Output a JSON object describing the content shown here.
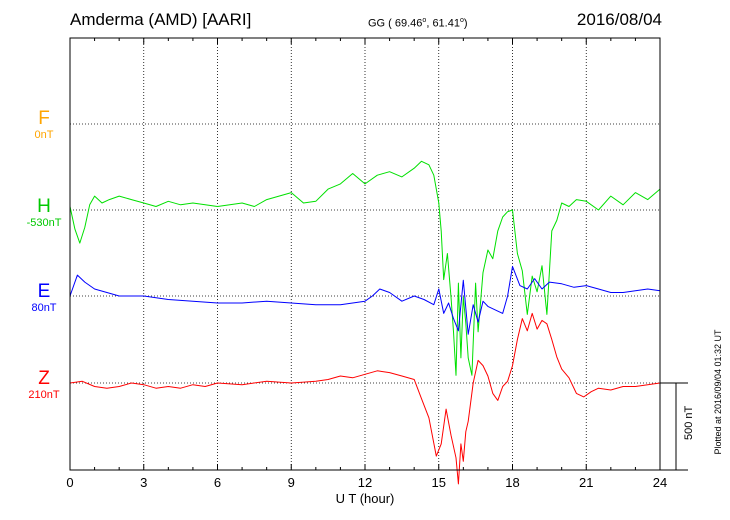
{
  "header": {
    "station": "Amderma (AMD)  [AARI]",
    "coords_prefix": "GG ( 69.46",
    "coords_mid": ",  61.41",
    "coords_suffix": ")",
    "degree": "o",
    "date": "2016/08/04"
  },
  "footer": {
    "plotted": "Plotted at 2016/09/04 01:32 UT",
    "scale": "500 nT"
  },
  "chart_data": {
    "type": "line",
    "title": "Amderma (AMD)  [AARI]",
    "xlabel": "U T (hour)",
    "ylabel": "",
    "xlim": [
      0,
      24
    ],
    "xticks": [
      0,
      3,
      6,
      9,
      12,
      15,
      18,
      21,
      24
    ],
    "scale_bar_nT": 500,
    "grid": true,
    "series": [
      {
        "name": "F",
        "baseline": "0nT",
        "color": "#ffa500",
        "x": [],
        "y": []
      },
      {
        "name": "H",
        "baseline": "-530nT",
        "color": "#00e000",
        "x": [
          0,
          0.2,
          0.4,
          0.6,
          0.8,
          1.0,
          1.3,
          1.6,
          2.0,
          2.5,
          3.0,
          3.5,
          4.0,
          4.5,
          5.0,
          5.5,
          6.0,
          6.5,
          7.0,
          7.5,
          8.0,
          8.5,
          9.0,
          9.5,
          10.0,
          10.5,
          11.0,
          11.5,
          12.0,
          12.5,
          13.0,
          13.5,
          14.0,
          14.3,
          14.6,
          14.8,
          15.0,
          15.1,
          15.2,
          15.35,
          15.5,
          15.6,
          15.7,
          15.8,
          15.9,
          16.0,
          16.1,
          16.2,
          16.35,
          16.5,
          16.6,
          16.8,
          17.0,
          17.2,
          17.4,
          17.6,
          17.8,
          18.0,
          18.2,
          18.4,
          18.6,
          18.8,
          19.0,
          19.2,
          19.4,
          19.6,
          19.8,
          20.0,
          20.3,
          20.6,
          21.0,
          21.5,
          22.0,
          22.5,
          23.0,
          23.5,
          24.0
        ],
        "y": [
          20,
          -110,
          -190,
          -100,
          30,
          80,
          40,
          60,
          80,
          60,
          40,
          20,
          50,
          30,
          40,
          30,
          20,
          30,
          40,
          20,
          60,
          80,
          100,
          40,
          50,
          120,
          150,
          210,
          150,
          200,
          220,
          190,
          240,
          280,
          260,
          200,
          40,
          -120,
          -400,
          -250,
          -500,
          -700,
          -950,
          -420,
          -850,
          -500,
          -650,
          -850,
          -950,
          -420,
          -700,
          -360,
          -230,
          -280,
          -120,
          -40,
          -10,
          0,
          -250,
          -350,
          -600,
          -380,
          -470,
          -320,
          -600,
          -120,
          -60,
          40,
          20,
          60,
          50,
          0,
          80,
          30,
          100,
          60,
          120
        ]
      },
      {
        "name": "E",
        "baseline": "80nT",
        "color": "#0000ff",
        "x": [
          0,
          0.3,
          0.6,
          1.0,
          1.5,
          2.0,
          3.0,
          4.0,
          5.0,
          6.0,
          7.0,
          8.0,
          9.0,
          10.0,
          11.0,
          12.0,
          12.3,
          12.6,
          13.0,
          13.5,
          14.0,
          14.4,
          14.8,
          15.0,
          15.2,
          15.4,
          15.6,
          15.8,
          16.0,
          16.2,
          16.4,
          16.6,
          16.8,
          17.0,
          17.3,
          17.6,
          17.8,
          18.0,
          18.3,
          18.6,
          18.9,
          19.2,
          19.5,
          20.0,
          20.5,
          21.0,
          21.5,
          22.0,
          22.5,
          23.0,
          23.5,
          24.0
        ],
        "y": [
          0,
          120,
          80,
          40,
          20,
          0,
          0,
          -20,
          -30,
          -40,
          -40,
          -30,
          -40,
          -50,
          -50,
          -30,
          0,
          40,
          20,
          -30,
          0,
          -20,
          -50,
          40,
          -100,
          -40,
          -130,
          -200,
          90,
          -220,
          -50,
          -150,
          -30,
          -60,
          -80,
          -100,
          0,
          170,
          60,
          40,
          100,
          40,
          80,
          70,
          50,
          60,
          40,
          20,
          20,
          30,
          40,
          30
        ]
      },
      {
        "name": "Z",
        "baseline": "210nT",
        "color": "#ff0000",
        "x": [
          0,
          0.5,
          1.0,
          1.5,
          2.0,
          2.5,
          3.0,
          3.5,
          4.0,
          4.5,
          5.0,
          5.5,
          6.0,
          7.0,
          8.0,
          9.0,
          10.0,
          10.5,
          11.0,
          11.5,
          12.0,
          12.5,
          13.0,
          13.5,
          14.0,
          14.3,
          14.6,
          14.9,
          15.1,
          15.3,
          15.5,
          15.7,
          15.8,
          15.9,
          16.0,
          16.1,
          16.2,
          16.4,
          16.6,
          16.8,
          17.0,
          17.2,
          17.4,
          17.6,
          17.8,
          18.0,
          18.2,
          18.4,
          18.6,
          18.8,
          19.0,
          19.2,
          19.4,
          19.6,
          19.8,
          20.0,
          20.3,
          20.6,
          20.9,
          21.2,
          21.5,
          22.0,
          22.5,
          23.0,
          23.5,
          24.0
        ],
        "y": [
          0,
          10,
          -20,
          -30,
          -20,
          0,
          -10,
          -30,
          -20,
          -30,
          -10,
          -20,
          0,
          -10,
          10,
          0,
          10,
          20,
          40,
          30,
          50,
          70,
          60,
          40,
          20,
          -90,
          -200,
          -420,
          -350,
          -150,
          -300,
          -430,
          -580,
          -350,
          -450,
          -280,
          -220,
          0,
          130,
          100,
          40,
          -60,
          -100,
          -20,
          10,
          100,
          250,
          370,
          300,
          400,
          310,
          360,
          340,
          250,
          150,
          80,
          30,
          -60,
          -80,
          -50,
          -30,
          -40,
          -20,
          -20,
          -10,
          0
        ]
      }
    ]
  }
}
